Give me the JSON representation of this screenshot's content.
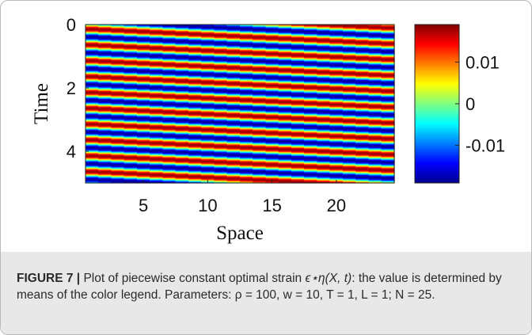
{
  "figure": {
    "caption_label": "FIGURE 7 |",
    "caption_text_1": "Plot of piecewise constant optimal strain",
    "caption_math": "ϵ⋆η(X, t)",
    "caption_text_2": ": the value is determined by means of the color legend. Parameters: ρ = 100, w = 10, T = 1, L = 1; N = 25."
  },
  "chart_data": {
    "type": "heatmap",
    "xlabel": "Space",
    "ylabel": "Time",
    "x_range": [
      0.5,
      24.5
    ],
    "y_range": [
      0,
      5
    ],
    "xticks": [
      5,
      10,
      15,
      20
    ],
    "xtick_labels": [
      "5",
      "10",
      "15",
      "20"
    ],
    "yticks": [
      0,
      2,
      4
    ],
    "ytick_labels": [
      "0",
      "2",
      "4"
    ],
    "colormap": "jet",
    "colorbar": {
      "range": [
        -0.019,
        0.019
      ],
      "ticks": [
        0.01,
        0,
        -0.01
      ],
      "tick_labels": [
        "0.01",
        "0",
        "-0.01"
      ]
    },
    "pattern": {
      "description_of_values": "strain ≈ amplitude·sin(2π·(t/period + x·phase_per_unit))",
      "amplitude": 0.018,
      "period": 0.5,
      "phase_per_unit": -0.04,
      "columns": 24,
      "time_steps": 400
    }
  }
}
